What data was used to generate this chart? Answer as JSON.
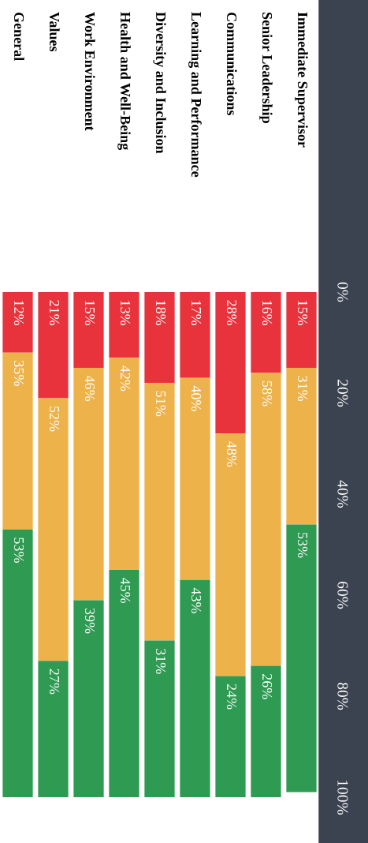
{
  "chart_data": {
    "type": "bar",
    "stacked": true,
    "categories": [
      "General",
      "Values",
      "Work Environment",
      "Health and Well-Being",
      "Diversity and Inclusion",
      "Learning and Performance",
      "Communications",
      "Senior Leadership",
      "Immediate Supervisor"
    ],
    "series": [
      {
        "color": "#e8333c",
        "values": [
          12,
          21,
          15,
          13,
          18,
          17,
          28,
          16,
          15
        ],
        "value_labels": [
          "12%",
          "21%",
          "15%",
          "13%",
          "18%",
          "17%",
          "28%",
          "16%",
          "15%"
        ]
      },
      {
        "color": "#eeb24a",
        "values": [
          35,
          52,
          46,
          42,
          51,
          40,
          48,
          58,
          31
        ],
        "value_labels": [
          "35%",
          "52%",
          "46%",
          "42%",
          "51%",
          "40%",
          "48%",
          "58%",
          "31%"
        ]
      },
      {
        "color": "#2e9a52",
        "values": [
          53,
          27,
          39,
          45,
          31,
          43,
          24,
          26,
          53
        ],
        "value_labels": [
          "53%",
          "27%",
          "39%",
          "45%",
          "31%",
          "43%",
          "24%",
          "26%",
          "53%"
        ]
      }
    ],
    "ylim": [
      100,
      0
    ],
    "yticks": [
      {
        "value": 0,
        "label": "0%"
      },
      {
        "value": 20,
        "label": "20%"
      },
      {
        "value": 40,
        "label": "40%"
      },
      {
        "value": 60,
        "label": "60%"
      },
      {
        "value": 80,
        "label": "80%"
      },
      {
        "value": 100,
        "label": "100%"
      }
    ],
    "legend": false,
    "grid": false
  }
}
